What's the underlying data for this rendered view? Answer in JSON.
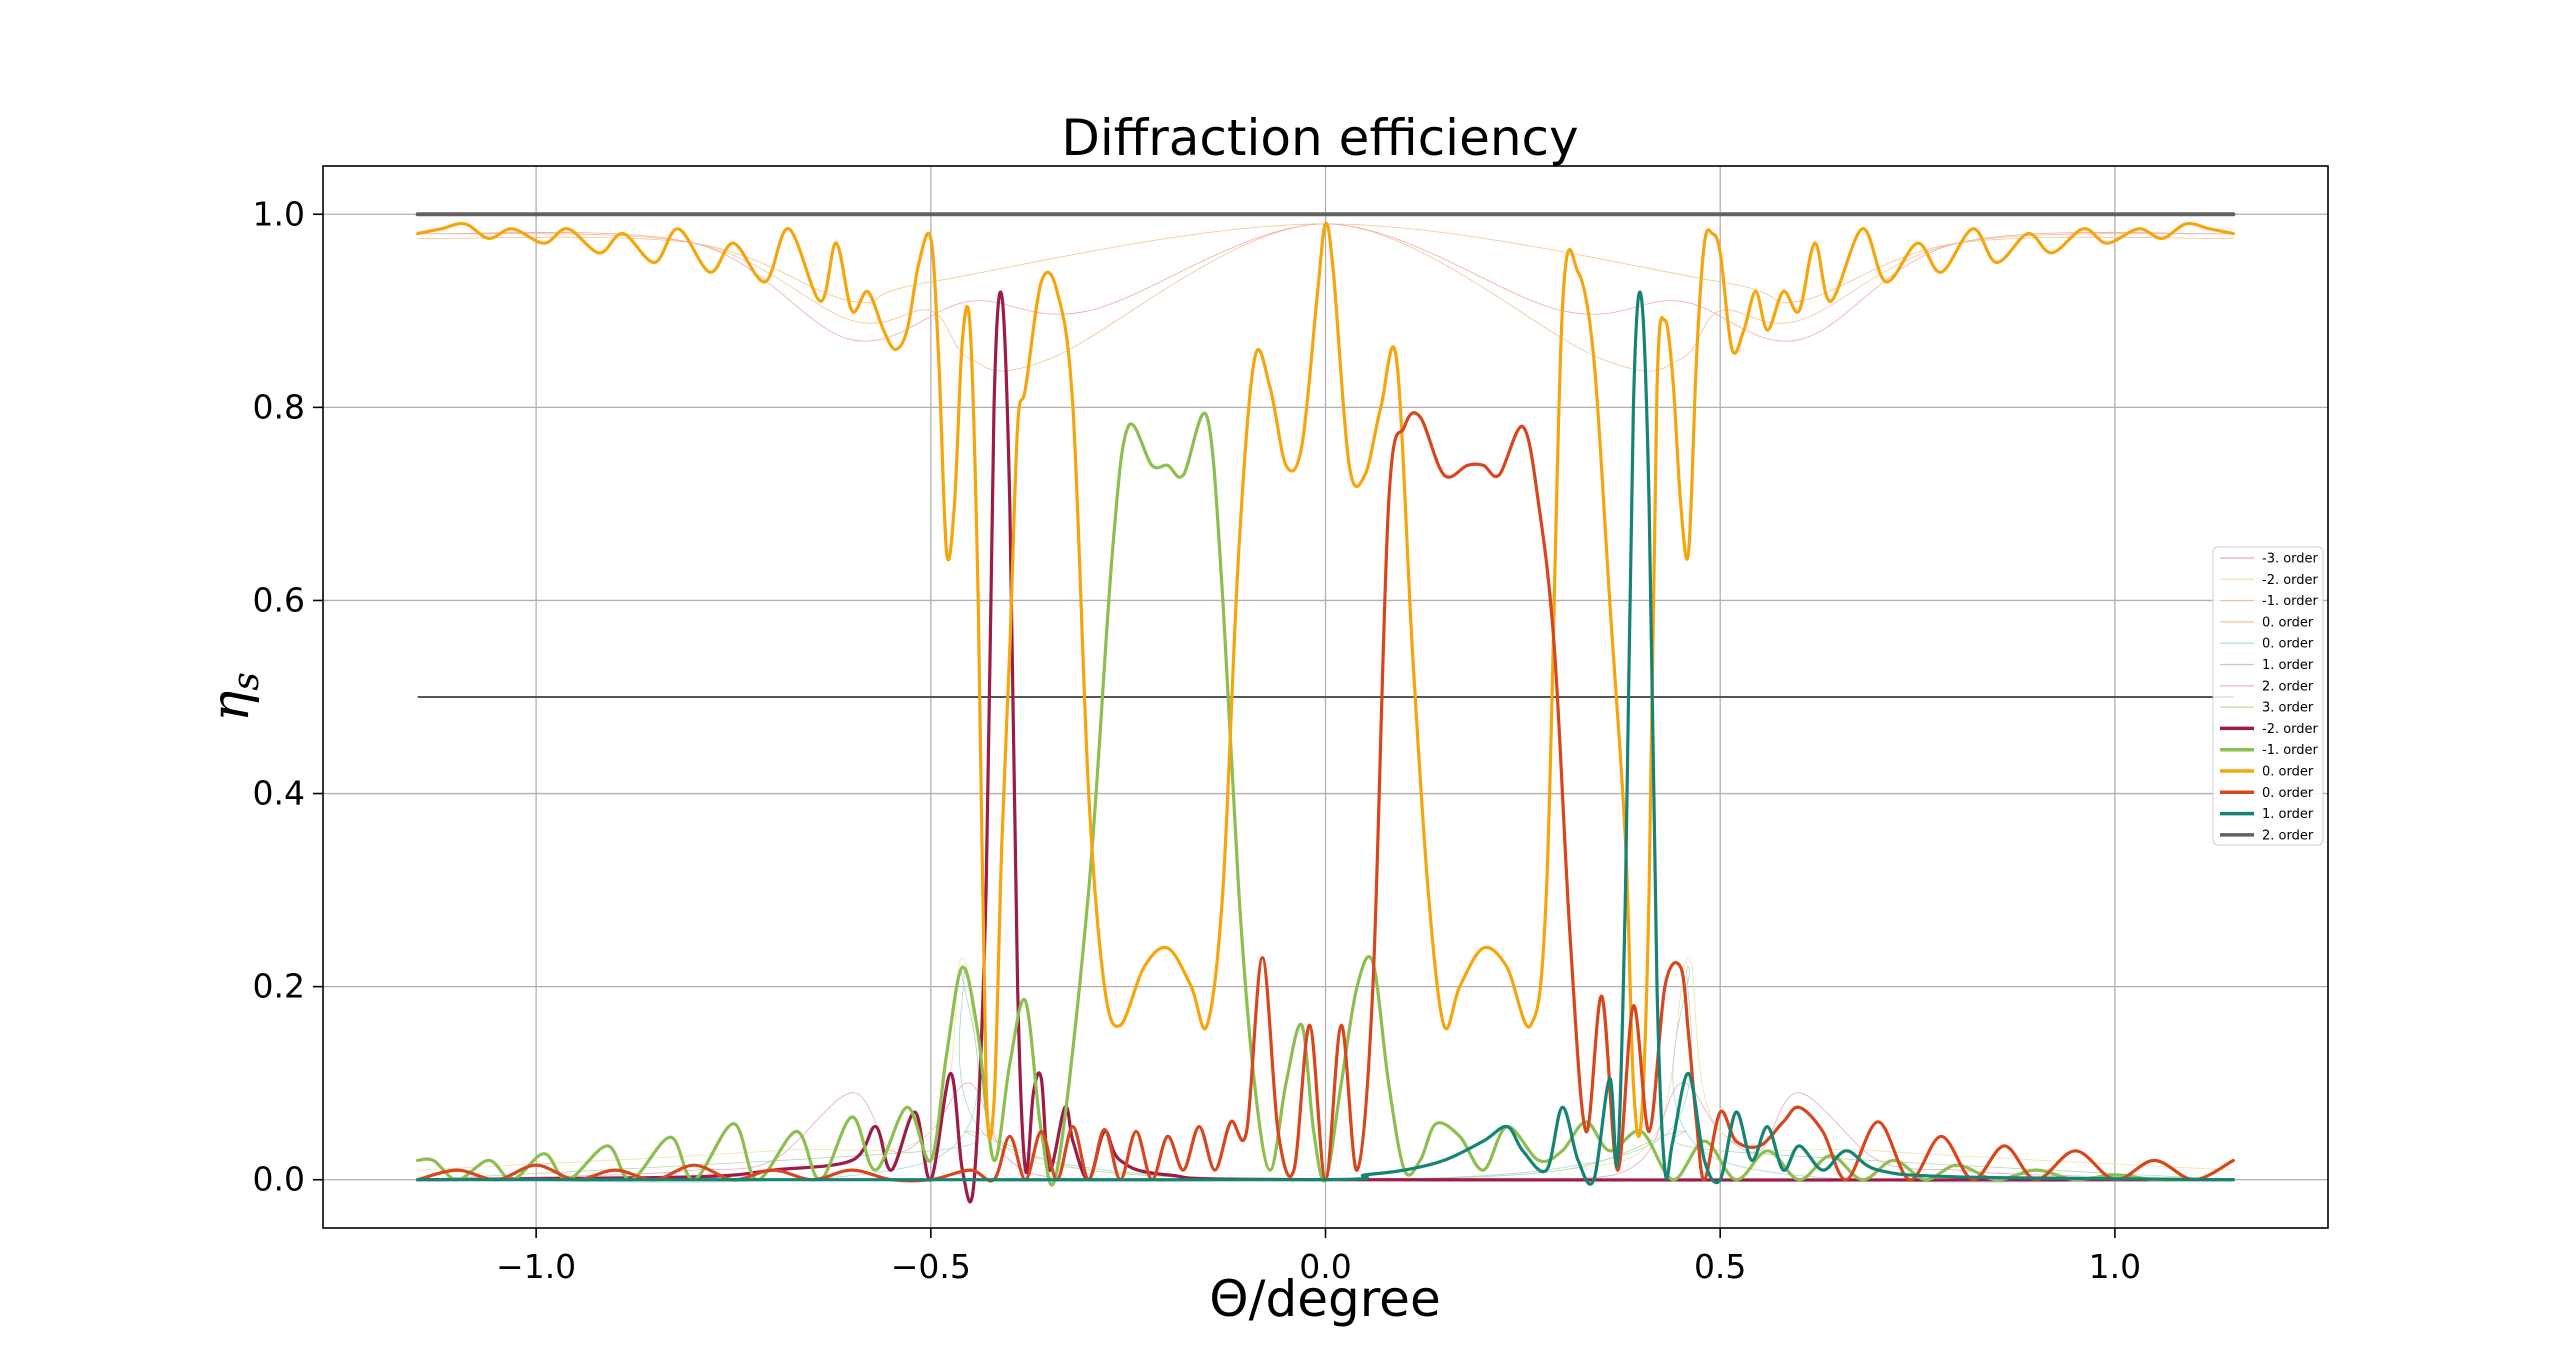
{
  "chart_data": {
    "type": "line",
    "title": "Diffraction efficiency",
    "xlabel": "Θ/degree",
    "ylabel_base": "η",
    "ylabel_sub": "s",
    "xlim": [
      -1.27,
      1.27
    ],
    "ylim": [
      -0.05,
      1.05
    ],
    "x_ticks": [
      -1.0,
      -0.5,
      0.0,
      0.5,
      1.0
    ],
    "x_tick_labels": [
      "−1.0",
      "−0.5",
      "0.0",
      "0.5",
      "1.0"
    ],
    "y_ticks": [
      0.0,
      0.2,
      0.4,
      0.6,
      0.8,
      1.0
    ],
    "y_tick_labels": [
      "0.0",
      "0.2",
      "0.4",
      "0.6",
      "0.8",
      "1.0"
    ],
    "grid": true,
    "legend_position": "right",
    "reference_line": {
      "x": [
        -1.15,
        1.15
      ],
      "y": 0.5,
      "color": "#555555"
    },
    "series": [
      {
        "name": "-3. order",
        "color": "#e7a6c6",
        "width": 0.8,
        "style": "thin",
        "values": {
          "x": [
            -1.15,
            -0.9,
            -0.8,
            -0.7,
            -0.6,
            -0.55,
            -0.5,
            -0.45,
            -0.4,
            -0.3,
            0.0,
            0.3,
            0.4,
            0.45,
            0.5,
            0.55,
            0.6,
            0.7,
            0.8,
            0.9,
            1.15
          ],
          "y": [
            0.0,
            0.005,
            0.01,
            0.02,
            0.09,
            0.03,
            0.05,
            0.1,
            0.02,
            0.0,
            0.0,
            0.0,
            0.02,
            0.1,
            0.05,
            0.03,
            0.09,
            0.02,
            0.01,
            0.005,
            0.0
          ]
        }
      },
      {
        "name": "-2. order",
        "color": "#f2e0a0",
        "width": 0.8,
        "style": "thin",
        "values": {
          "x": [
            -1.15,
            -0.7,
            -0.5,
            -0.46,
            -0.42,
            -0.3,
            0.0,
            0.3,
            0.42,
            0.46,
            0.5,
            0.7,
            1.15
          ],
          "y": [
            0.01,
            0.03,
            0.05,
            0.23,
            0.05,
            0.01,
            0.0,
            0.01,
            0.05,
            0.23,
            0.05,
            0.03,
            0.01
          ]
        }
      },
      {
        "name": "-1. order",
        "color": "#f3c29a",
        "width": 0.8,
        "style": "thin",
        "values": {
          "x": [
            -1.15,
            -0.8,
            -0.6,
            -0.5,
            -0.45,
            -0.35,
            0.0,
            0.35,
            0.45,
            0.5,
            0.6,
            0.8,
            1.15
          ],
          "y": [
            0.98,
            0.97,
            0.89,
            0.9,
            0.85,
            0.85,
            0.99,
            0.85,
            0.85,
            0.9,
            0.89,
            0.97,
            0.98
          ]
        }
      },
      {
        "name": "0. order",
        "color": "#f5c48a",
        "width": 0.8,
        "style": "thin",
        "values": {
          "x": [
            -1.15,
            -0.8,
            -0.6,
            -0.5,
            0.0,
            0.5,
            0.6,
            0.8,
            1.15
          ],
          "y": [
            0.975,
            0.97,
            0.91,
            0.93,
            0.99,
            0.93,
            0.91,
            0.97,
            0.975
          ]
        }
      },
      {
        "name": "0. order",
        "color": "#a8d8d4",
        "width": 0.8,
        "style": "thin",
        "values": {
          "x": [
            -1.15,
            -0.5,
            -0.46,
            -0.42,
            0.0,
            0.42,
            0.46,
            0.5,
            1.15
          ],
          "y": [
            0.0,
            0.02,
            0.22,
            0.04,
            0.0,
            0.04,
            0.22,
            0.02,
            0.0
          ]
        }
      },
      {
        "name": "1. order",
        "color": "#c8c8c8",
        "width": 0.8,
        "style": "thin",
        "values": {
          "x": [
            -1.15,
            1.15
          ],
          "y": [
            0.0,
            0.0
          ]
        }
      },
      {
        "name": "2. order",
        "color": "#f4a8a8",
        "width": 0.8,
        "style": "thin",
        "values": {
          "x": [
            -1.15,
            -0.8,
            -0.6,
            -0.45,
            -0.3,
            0.0,
            0.3,
            0.45,
            0.6,
            0.8,
            1.15
          ],
          "y": [
            0.98,
            0.97,
            0.87,
            0.91,
            0.9,
            0.99,
            0.9,
            0.91,
            0.87,
            0.97,
            0.98
          ]
        }
      },
      {
        "name": "3. order",
        "color": "#b7d9a8",
        "width": 0.8,
        "style": "thin",
        "values": {
          "x": [
            -1.15,
            -0.5,
            -0.45,
            -0.3,
            0.0,
            0.3,
            0.45,
            0.5,
            1.15
          ],
          "y": [
            0.0,
            0.03,
            0.05,
            0.01,
            0.0,
            0.01,
            0.05,
            0.03,
            0.0
          ]
        }
      },
      {
        "name": "-2. order",
        "color": "#9b1c46",
        "width": 3.2,
        "style": "thick",
        "values": {
          "x": [
            -1.15,
            -0.8,
            -0.7,
            -0.6,
            -0.57,
            -0.55,
            -0.52,
            -0.5,
            -0.475,
            -0.46,
            -0.445,
            -0.43,
            -0.42,
            -0.41,
            -0.4,
            -0.39,
            -0.38,
            -0.37,
            -0.36,
            -0.35,
            -0.33,
            -0.32,
            -0.3,
            -0.28,
            -0.26,
            -0.2,
            0.0,
            1.15
          ],
          "y": [
            0.0,
            0.003,
            0.01,
            0.02,
            0.055,
            0.01,
            0.07,
            0.0,
            0.11,
            0.01,
            0.0,
            0.3,
            0.8,
            0.915,
            0.7,
            0.2,
            0.01,
            0.09,
            0.105,
            0.01,
            0.075,
            0.04,
            0.0,
            0.05,
            0.02,
            0.005,
            0.0,
            0.0
          ]
        }
      },
      {
        "name": "-1. order",
        "color": "#8cbe50",
        "width": 3.2,
        "style": "thick",
        "values": {
          "x": [
            -1.15,
            -1.13,
            -1.1,
            -1.06,
            -1.03,
            -0.99,
            -0.96,
            -0.91,
            -0.88,
            -0.83,
            -0.8,
            -0.75,
            -0.72,
            -0.67,
            -0.64,
            -0.6,
            -0.57,
            -0.53,
            -0.5,
            -0.48,
            -0.46,
            -0.44,
            -0.42,
            -0.4,
            -0.38,
            -0.36,
            -0.34,
            -0.3,
            -0.27,
            -0.25,
            -0.22,
            -0.2,
            -0.18,
            -0.15,
            -0.13,
            -0.11,
            -0.09,
            -0.07,
            -0.05,
            -0.03,
            -0.015,
            0.0,
            0.02,
            0.04,
            0.06,
            0.08,
            0.1,
            0.12,
            0.14,
            0.17,
            0.2,
            0.23,
            0.27,
            0.3,
            0.33,
            0.36,
            0.4,
            0.44,
            0.48,
            0.52,
            0.56,
            0.6,
            0.64,
            0.68,
            0.72,
            0.76,
            0.8,
            0.85,
            0.9,
            0.95,
            1.0,
            1.05,
            1.1,
            1.15
          ],
          "y": [
            0.02,
            0.02,
            0.0,
            0.02,
            0.0,
            0.027,
            0.0,
            0.035,
            0.0,
            0.044,
            0.0,
            0.058,
            0.0,
            0.05,
            0.0,
            0.065,
            0.01,
            0.075,
            0.02,
            0.13,
            0.22,
            0.15,
            0.02,
            0.12,
            0.185,
            0.05,
            0.01,
            0.3,
            0.65,
            0.78,
            0.74,
            0.74,
            0.73,
            0.79,
            0.6,
            0.3,
            0.1,
            0.01,
            0.1,
            0.16,
            0.05,
            0.0,
            0.1,
            0.2,
            0.225,
            0.1,
            0.01,
            0.02,
            0.058,
            0.045,
            0.01,
            0.055,
            0.02,
            0.03,
            0.06,
            0.03,
            0.05,
            0.0,
            0.04,
            0.0,
            0.03,
            0.0,
            0.025,
            0.0,
            0.02,
            0.0,
            0.015,
            0.0,
            0.01,
            0.0,
            0.005,
            0.0,
            0.0,
            0.0
          ]
        }
      },
      {
        "name": "0. order",
        "color": "#f5a60f",
        "width": 3.2,
        "style": "thick",
        "values": {
          "x": [
            -1.15,
            -1.12,
            -1.09,
            -1.06,
            -1.03,
            -0.99,
            -0.96,
            -0.92,
            -0.89,
            -0.85,
            -0.82,
            -0.78,
            -0.75,
            -0.71,
            -0.68,
            -0.64,
            -0.62,
            -0.6,
            -0.58,
            -0.56,
            -0.545,
            -0.53,
            -0.515,
            -0.5,
            -0.49,
            -0.48,
            -0.47,
            -0.46,
            -0.45,
            -0.44,
            -0.43,
            -0.42,
            -0.41,
            -0.4,
            -0.39,
            -0.38,
            -0.36,
            -0.34,
            -0.32,
            -0.3,
            -0.28,
            -0.26,
            -0.23,
            -0.2,
            -0.17,
            -0.15,
            -0.13,
            -0.11,
            -0.09,
            -0.07,
            -0.05,
            -0.03,
            -0.01,
            0.0,
            0.01,
            0.03,
            0.05,
            0.07,
            0.09,
            0.11,
            0.13,
            0.15,
            0.17,
            0.2,
            0.23,
            0.26,
            0.28,
            0.3,
            0.32,
            0.34,
            0.36,
            0.38,
            0.39,
            0.4,
            0.41,
            0.42,
            0.43,
            0.44,
            0.45,
            0.46,
            0.47,
            0.48,
            0.49,
            0.5,
            0.515,
            0.53,
            0.545,
            0.56,
            0.58,
            0.6,
            0.62,
            0.64,
            0.68,
            0.71,
            0.75,
            0.78,
            0.82,
            0.85,
            0.89,
            0.92,
            0.96,
            0.99,
            1.03,
            1.06,
            1.09,
            1.12,
            1.15
          ],
          "y": [
            0.98,
            0.985,
            0.99,
            0.975,
            0.985,
            0.97,
            0.985,
            0.96,
            0.98,
            0.95,
            0.985,
            0.94,
            0.97,
            0.93,
            0.985,
            0.91,
            0.97,
            0.9,
            0.92,
            0.88,
            0.86,
            0.88,
            0.95,
            0.975,
            0.85,
            0.65,
            0.7,
            0.87,
            0.88,
            0.6,
            0.1,
            0.08,
            0.35,
            0.55,
            0.78,
            0.82,
            0.93,
            0.92,
            0.8,
            0.4,
            0.2,
            0.16,
            0.22,
            0.24,
            0.2,
            0.16,
            0.3,
            0.65,
            0.85,
            0.82,
            0.74,
            0.76,
            0.92,
            0.99,
            0.94,
            0.74,
            0.73,
            0.8,
            0.85,
            0.55,
            0.3,
            0.16,
            0.2,
            0.24,
            0.22,
            0.16,
            0.3,
            0.9,
            0.94,
            0.85,
            0.6,
            0.35,
            0.1,
            0.06,
            0.3,
            0.82,
            0.89,
            0.83,
            0.7,
            0.65,
            0.85,
            0.97,
            0.98,
            0.96,
            0.86,
            0.88,
            0.92,
            0.88,
            0.92,
            0.9,
            0.97,
            0.91,
            0.985,
            0.93,
            0.97,
            0.94,
            0.985,
            0.95,
            0.98,
            0.96,
            0.985,
            0.97,
            0.985,
            0.975,
            0.99,
            0.985,
            0.98
          ]
        }
      },
      {
        "name": "0. order",
        "color": "#d8461d",
        "width": 3.2,
        "style": "thick",
        "values": {
          "x": [
            -1.15,
            -1.1,
            -1.05,
            -1.0,
            -0.95,
            -0.9,
            -0.85,
            -0.8,
            -0.75,
            -0.7,
            -0.65,
            -0.6,
            -0.55,
            -0.5,
            -0.45,
            -0.42,
            -0.4,
            -0.38,
            -0.36,
            -0.34,
            -0.32,
            -0.3,
            -0.28,
            -0.26,
            -0.24,
            -0.22,
            -0.2,
            -0.18,
            -0.16,
            -0.14,
            -0.12,
            -0.1,
            -0.08,
            -0.06,
            -0.04,
            -0.02,
            0.0,
            0.02,
            0.04,
            0.06,
            0.08,
            0.1,
            0.12,
            0.15,
            0.18,
            0.2,
            0.22,
            0.25,
            0.27,
            0.29,
            0.31,
            0.33,
            0.35,
            0.37,
            0.39,
            0.41,
            0.43,
            0.45,
            0.46,
            0.47,
            0.48,
            0.5,
            0.52,
            0.55,
            0.58,
            0.6,
            0.63,
            0.66,
            0.7,
            0.74,
            0.78,
            0.82,
            0.86,
            0.9,
            0.95,
            1.0,
            1.05,
            1.1,
            1.15
          ],
          "y": [
            0.0,
            0.01,
            0.0,
            0.015,
            0.0,
            0.01,
            0.0,
            0.015,
            0.0,
            0.01,
            0.0,
            0.01,
            0.0,
            0.0,
            0.01,
            0.0,
            0.045,
            0.0,
            0.05,
            0.0,
            0.055,
            0.0,
            0.052,
            0.0,
            0.05,
            0.0,
            0.045,
            0.01,
            0.055,
            0.01,
            0.06,
            0.05,
            0.23,
            0.05,
            0.01,
            0.16,
            0.0,
            0.16,
            0.01,
            0.2,
            0.7,
            0.78,
            0.79,
            0.73,
            0.74,
            0.74,
            0.73,
            0.78,
            0.7,
            0.55,
            0.25,
            0.05,
            0.19,
            0.01,
            0.18,
            0.05,
            0.2,
            0.22,
            0.15,
            0.06,
            0.0,
            0.07,
            0.04,
            0.035,
            0.06,
            0.075,
            0.05,
            0.0,
            0.06,
            0.0,
            0.045,
            0.0,
            0.035,
            0.0,
            0.03,
            0.0,
            0.02,
            0.0,
            0.02
          ]
        }
      },
      {
        "name": "1. order",
        "color": "#168374",
        "width": 3.2,
        "style": "thick",
        "values": {
          "x": [
            -1.15,
            -0.5,
            0.0,
            0.05,
            0.1,
            0.15,
            0.2,
            0.23,
            0.25,
            0.28,
            0.3,
            0.32,
            0.34,
            0.36,
            0.37,
            0.38,
            0.39,
            0.4,
            0.41,
            0.42,
            0.43,
            0.44,
            0.46,
            0.48,
            0.5,
            0.52,
            0.54,
            0.56,
            0.58,
            0.6,
            0.63,
            0.66,
            0.7,
            0.8,
            1.15
          ],
          "y": [
            0.0,
            0.0,
            0.0,
            0.005,
            0.01,
            0.02,
            0.04,
            0.055,
            0.03,
            0.01,
            0.075,
            0.02,
            0.0,
            0.105,
            0.02,
            0.3,
            0.8,
            0.915,
            0.7,
            0.2,
            0.01,
            0.04,
            0.11,
            0.02,
            0.0,
            0.07,
            0.02,
            0.055,
            0.01,
            0.035,
            0.01,
            0.03,
            0.01,
            0.003,
            0.0
          ]
        }
      },
      {
        "name": "2. order",
        "color": "#616161",
        "width": 4.0,
        "style": "thick",
        "values": {
          "x": [
            -1.15,
            1.15
          ],
          "y": [
            1.0,
            1.0
          ]
        }
      }
    ]
  }
}
